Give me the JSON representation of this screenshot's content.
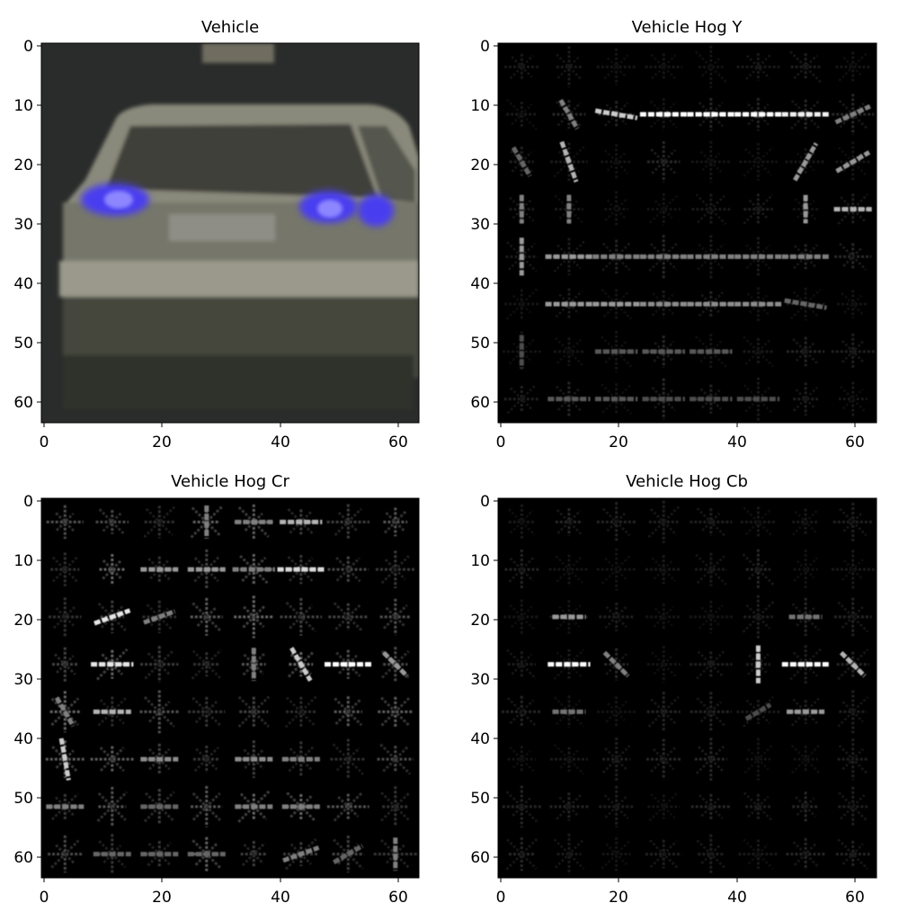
{
  "figure": {
    "panels": [
      {
        "title": "Vehicle",
        "kind": "photo",
        "x_ticks": [
          "0",
          "20",
          "40",
          "60"
        ],
        "y_ticks": [
          "0",
          "10",
          "20",
          "30",
          "40",
          "50",
          "60"
        ],
        "x_range": [
          -0.5,
          63.5
        ],
        "y_range": [
          -0.5,
          63.5
        ],
        "colors": {
          "background": "#2a2c2b",
          "body": "#7c7d70",
          "window": "#3d3f39",
          "taillight": "#5a48ff",
          "plate": "#8d8c86",
          "shadow": "#1f201c"
        }
      },
      {
        "title": "Vehicle Hog Y",
        "kind": "hog",
        "x_ticks": [
          "0",
          "20",
          "40",
          "60"
        ],
        "y_ticks": [
          "0",
          "10",
          "20",
          "30",
          "40",
          "50",
          "60"
        ],
        "x_range": [
          -0.5,
          63.5
        ],
        "y_range": [
          -0.5,
          63.5
        ],
        "cell_size": 8,
        "grid": 8,
        "colors": {
          "background": "#000000",
          "stroke": "#ffffff"
        }
      },
      {
        "title": "Vehicle Hog Cr",
        "kind": "hog",
        "x_ticks": [
          "0",
          "20",
          "40",
          "60"
        ],
        "y_ticks": [
          "0",
          "10",
          "20",
          "30",
          "40",
          "50",
          "60"
        ],
        "x_range": [
          -0.5,
          63.5
        ],
        "y_range": [
          -0.5,
          63.5
        ],
        "cell_size": 8,
        "grid": 8,
        "colors": {
          "background": "#000000",
          "stroke": "#ffffff"
        }
      },
      {
        "title": "Vehicle Hog Cb",
        "kind": "hog",
        "x_ticks": [
          "0",
          "20",
          "40",
          "60"
        ],
        "y_ticks": [
          "0",
          "10",
          "20",
          "30",
          "40",
          "50",
          "60"
        ],
        "x_range": [
          -0.5,
          63.5
        ],
        "y_range": [
          -0.5,
          63.5
        ],
        "cell_size": 8,
        "grid": 8,
        "colors": {
          "background": "#000000",
          "stroke": "#ffffff"
        }
      }
    ]
  }
}
